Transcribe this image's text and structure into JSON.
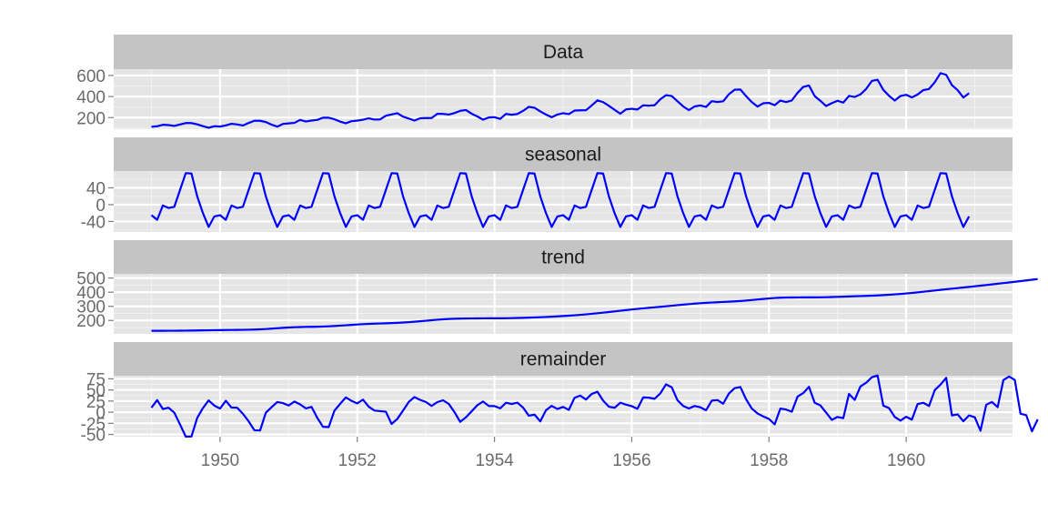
{
  "chart_data": {
    "type": "line",
    "title": "",
    "xlabel": "",
    "ylabel": "",
    "series_color": "#0000ff",
    "panel_background": "#e5e5e5",
    "strip_background": "#c4c4c4",
    "grid": true,
    "x_start": 1949.0,
    "x_step": 0.0833333,
    "xlim": [
      1948.45,
      1961.55
    ],
    "x_ticks": [
      1950,
      1952,
      1954,
      1956,
      1958,
      1960
    ],
    "x_tick_labels": [
      "1950",
      "1952",
      "1954",
      "1956",
      "1958",
      "1960"
    ],
    "panels": [
      {
        "name": "Data",
        "ylim": [
          90,
          660
        ],
        "y_ticks": [
          200,
          400,
          600
        ],
        "y_tick_labels": [
          "200",
          "400",
          "600"
        ],
        "values": [
          112,
          118,
          132,
          129,
          121,
          135,
          148,
          148,
          136,
          119,
          104,
          118,
          115,
          126,
          141,
          135,
          125,
          149,
          170,
          170,
          158,
          133,
          114,
          140,
          145,
          150,
          178,
          163,
          172,
          178,
          199,
          199,
          184,
          162,
          146,
          166,
          171,
          180,
          193,
          181,
          183,
          218,
          230,
          242,
          209,
          191,
          172,
          194,
          196,
          196,
          236,
          235,
          229,
          243,
          264,
          272,
          237,
          211,
          180,
          201,
          204,
          188,
          235,
          227,
          234,
          264,
          302,
          293,
          259,
          229,
          203,
          229,
          242,
          233,
          267,
          269,
          270,
          315,
          364,
          347,
          312,
          274,
          237,
          278,
          284,
          277,
          317,
          313,
          318,
          374,
          413,
          405,
          355,
          306,
          271,
          306,
          315,
          301,
          356,
          348,
          355,
          422,
          465,
          467,
          404,
          347,
          305,
          336,
          340,
          318,
          362,
          348,
          363,
          435,
          491,
          505,
          404,
          359,
          310,
          337,
          360,
          342,
          406,
          396,
          420,
          472,
          548,
          559,
          463,
          407,
          362,
          405,
          417,
          391,
          419,
          461,
          472,
          535,
          622,
          606,
          508,
          461,
          390,
          432
        ]
      },
      {
        "name": "seasonal",
        "ylim": [
          -65,
          80
        ],
        "y_ticks": [
          -40,
          0,
          40
        ],
        "y_tick_labels": [
          "-40",
          "0",
          "40"
        ],
        "values": [
          -25,
          -36,
          -2,
          -8,
          -5,
          35,
          75,
          74,
          20,
          -20,
          -53,
          -28
        ]
      },
      {
        "name": "trend",
        "ylim": [
          105,
          530
        ],
        "y_ticks": [
          200,
          300,
          400,
          500
        ],
        "y_tick_labels": [
          "200",
          "300",
          "400",
          "500"
        ],
        "values": [
          126.8,
          126.8,
          126.9,
          127.0,
          127.2,
          127.5,
          128.0,
          128.5,
          129.0,
          129.8,
          130.5,
          131.2,
          131.8,
          132.2,
          132.6,
          133.0,
          133.6,
          134.5,
          135.6,
          137.1,
          139.2,
          141.9,
          144.7,
          147.5,
          150.0,
          152.0,
          153.4,
          154.4,
          155.1,
          155.7,
          156.8,
          158.6,
          160.7,
          163.2,
          165.8,
          168.6,
          171.3,
          173.7,
          175.7,
          177.3,
          178.6,
          179.9,
          181.4,
          183.2,
          185.4,
          188.0,
          191.0,
          194.4,
          198.1,
          201.8,
          205.3,
          208.2,
          210.4,
          211.9,
          212.9,
          213.6,
          214.1,
          214.5,
          214.9,
          215.1,
          215.2,
          215.4,
          215.8,
          216.5,
          217.5,
          218.6,
          219.9,
          221.4,
          222.9,
          224.6,
          226.6,
          228.8,
          231.2,
          233.8,
          236.6,
          239.7,
          243.1,
          246.9,
          250.9,
          255.2,
          259.6,
          264.1,
          268.6,
          273.2,
          277.6,
          281.8,
          285.7,
          289.4,
          293.0,
          296.7,
          300.4,
          304.2,
          308.1,
          311.9,
          315.6,
          319.0,
          322.0,
          324.6,
          326.9,
          328.9,
          330.8,
          332.8,
          335.1,
          337.8,
          340.9,
          344.5,
          348.4,
          352.3,
          355.9,
          358.8,
          360.9,
          362.2,
          362.8,
          363.1,
          363.2,
          363.3,
          363.5,
          363.9,
          364.6,
          365.7,
          367.0,
          368.4,
          369.9,
          371.3,
          372.6,
          373.9,
          375.4,
          377.2,
          379.3,
          381.8,
          384.6,
          387.7,
          391.1,
          394.8,
          398.8,
          403.2,
          407.7,
          412.1,
          416.5,
          420.8,
          425.0,
          429.1,
          433.3,
          437.6,
          441.9,
          446.3,
          450.8,
          455.3,
          459.8,
          464.4,
          469.0,
          473.7,
          478.4,
          483.2,
          488.0,
          492.9
        ]
      },
      {
        "name": "remainder",
        "ylim": [
          -55,
          82
        ],
        "y_ticks": [
          -50,
          -25,
          0,
          25,
          50,
          75
        ],
        "y_tick_labels": [
          "-50",
          "-25",
          "0",
          "25",
          "50",
          "75"
        ],
        "values": [
          10.2,
          27.2,
          7.1,
          10.0,
          -1.2,
          -27.5,
          -55.0,
          -54.5,
          -13.0,
          9.2,
          26.5,
          14.8,
          8.2,
          25.8,
          10.4,
          10.0,
          -3.6,
          -20.5,
          -40.6,
          -41.1,
          -1.2,
          11.1,
          22.8,
          20.5,
          15.0,
          24.0,
          17.6,
          8.6,
          11.9,
          -12.7,
          -32.8,
          -33.6,
          3.3,
          18.8,
          33.2,
          25.4,
          19.7,
          28.3,
          12.3,
          3.7,
          2.4,
          1.1,
          -26.4,
          -15.2,
          3.6,
          23.0,
          34.0,
          27.6,
          22.9,
          14.2,
          22.7,
          26.8,
          18.6,
          0.1,
          -21.6,
          -11.6,
          2.1,
          15.8,
          24.0,
          13.9,
          13.8,
          8.6,
          21.2,
          18.5,
          21.5,
          10.4,
          -7.9,
          -5.4,
          -20.7,
          4.4,
          14.2,
          7.2,
          11.8,
          5.2,
          32.4,
          37.3,
          28.4,
          41.0,
          45.9,
          26.1,
          12.4,
          9.9,
          21.4,
          17.0,
          13.6,
          7.6,
          33.2,
          32.7,
          30.1,
          42.3,
          62.6,
          56.0,
          26.9,
          14.1,
          8.4,
          14.0,
          11.0,
          4.3,
          26.0,
          27.2,
          19.1,
          42.0,
          54.0,
          56.6,
          29.1,
          8.2,
          -2.9,
          -9.4,
          -15.1,
          -27.3,
          8.2,
          5.9,
          1.1,
          35.0,
          42.9,
          57.1,
          21.2,
          15.2,
          -0.9,
          -17.2,
          -10.6,
          -13.4,
          41.0,
          27.6,
          57.8,
          66.2,
          78.6,
          82.6,
          14.8,
          9.2,
          -10.6,
          -18.9,
          -10.2,
          -16.7,
          18.3,
          21.3,
          13.9,
          49.6,
          62.0,
          77.3,
          -7.2,
          -4.8,
          -20.3,
          -7.2,
          -11.5,
          -41.6,
          16.7,
          23.1,
          11.4,
          72.1,
          80.2,
          72.4,
          -3.5,
          -6.6,
          -43.0,
          -16.1
        ]
      }
    ]
  }
}
